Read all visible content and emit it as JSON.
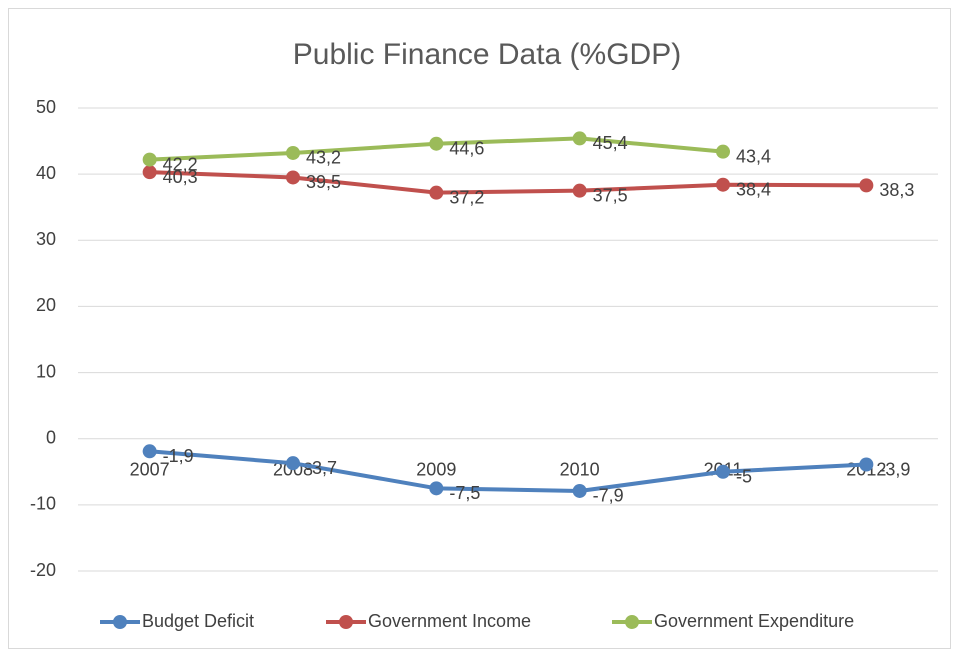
{
  "chart_data": {
    "type": "line",
    "title": "Public Finance Data (%GDP)",
    "categories": [
      "2007",
      "2008",
      "2009",
      "2010",
      "2011",
      "2012"
    ],
    "series": [
      {
        "name": "Budget Deficit",
        "color": "#4f81bd",
        "values": [
          -1.9,
          -3.7,
          -7.5,
          -7.9,
          -5,
          -3.9
        ],
        "value_labels": [
          "-1,9",
          "-3,7",
          "-7,5",
          "-7,9",
          "-5",
          "-3,9"
        ]
      },
      {
        "name": "Government Income",
        "color": "#c0504d",
        "values": [
          40.3,
          39.5,
          37.2,
          37.5,
          38.4,
          38.3
        ],
        "value_labels": [
          "40,3",
          "39,5",
          "37,2",
          "37,5",
          "38,4",
          "38,3"
        ]
      },
      {
        "name": "Government Expenditure",
        "color": "#9bbb59",
        "values": [
          42.2,
          43.2,
          44.6,
          45.4,
          43.4,
          null
        ],
        "value_labels": [
          "42,2",
          "43,2",
          "44,6",
          "45,4",
          "43,4",
          null
        ]
      }
    ],
    "ylim": [
      -20,
      50
    ],
    "yticks": [
      -20,
      -10,
      0,
      10,
      20,
      30,
      40,
      50
    ],
    "grid": true,
    "legend": "bottom"
  }
}
